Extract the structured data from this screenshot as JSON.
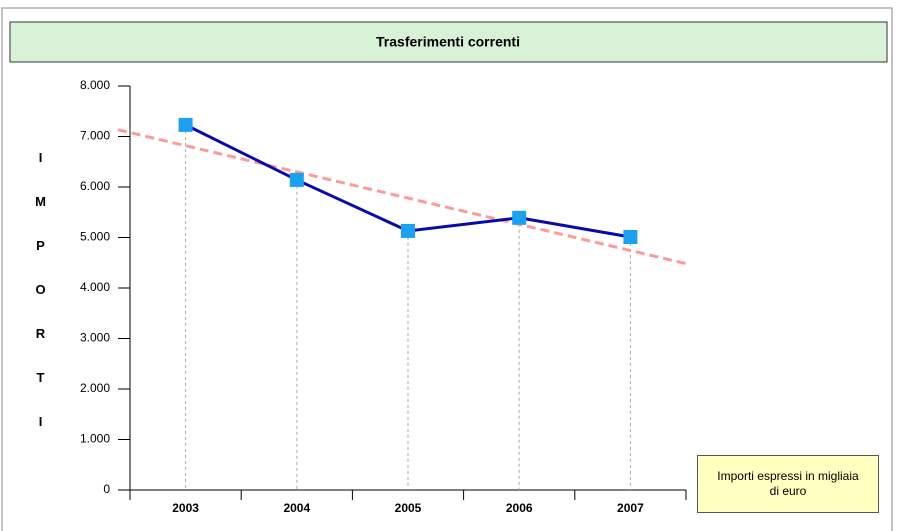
{
  "chart_data": {
    "type": "line",
    "title": "Trasferimenti correnti",
    "y_label": "IMPORTI",
    "note": "Importi espressi in migliaia di euro",
    "categories": [
      "2003",
      "2004",
      "2005",
      "2006",
      "2007"
    ],
    "series": [
      {
        "name": "Trasferimenti correnti",
        "color": "#0a0aa8",
        "marker_color": "#1ea0f0",
        "values": [
          7230,
          6140,
          5130,
          5390,
          5010
        ]
      }
    ],
    "ylim": [
      0,
      8000
    ],
    "yticks": [
      {
        "value": 0,
        "label": "0"
      },
      {
        "value": 1000,
        "label": "1.000"
      },
      {
        "value": 2000,
        "label": "2.000"
      },
      {
        "value": 3000,
        "label": "3.000"
      },
      {
        "value": 4000,
        "label": "4.000"
      },
      {
        "value": 5000,
        "label": "5.000"
      },
      {
        "value": 6000,
        "label": "6.000"
      },
      {
        "value": 7000,
        "label": "7.000"
      },
      {
        "value": 8000,
        "label": "8.000"
      }
    ],
    "trendline": true,
    "trendline_color": "#ff9a9a",
    "drop_lines": true
  }
}
